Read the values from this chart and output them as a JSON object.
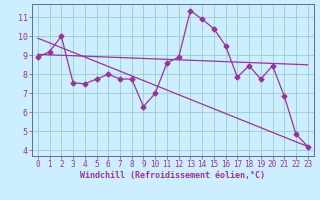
{
  "background_color": "#cceeff",
  "plot_bg_color": "#cceeff",
  "grid_color": "#99cccc",
  "line_color": "#993399",
  "spine_color": "#666699",
  "xlim": [
    -0.5,
    23.5
  ],
  "ylim": [
    3.7,
    11.7
  ],
  "yticks": [
    4,
    5,
    6,
    7,
    8,
    9,
    10,
    11
  ],
  "xticks": [
    0,
    1,
    2,
    3,
    4,
    5,
    6,
    7,
    8,
    9,
    10,
    11,
    12,
    13,
    14,
    15,
    16,
    17,
    18,
    19,
    20,
    21,
    22,
    23
  ],
  "xlabel": "Windchill (Refroidissement éolien,°C)",
  "line1_x": [
    0,
    1,
    2,
    3,
    4,
    5,
    6,
    7,
    8,
    9,
    10,
    11,
    12,
    13,
    14,
    15,
    16,
    17,
    18,
    19,
    20,
    21,
    22,
    23
  ],
  "line1_y": [
    8.9,
    9.2,
    10.0,
    7.55,
    7.5,
    7.75,
    8.0,
    7.75,
    7.75,
    6.3,
    7.0,
    8.6,
    8.9,
    11.35,
    10.9,
    10.4,
    9.5,
    7.85,
    8.45,
    7.75,
    8.45,
    6.85,
    4.85,
    4.2
  ],
  "line2_x": [
    0,
    23
  ],
  "line2_y": [
    9.05,
    8.5
  ],
  "line3_x": [
    0,
    23
  ],
  "line3_y": [
    9.9,
    4.2
  ],
  "markersize": 2.5,
  "linewidth": 0.9,
  "tick_fontsize": 5.5,
  "xlabel_fontsize": 6.0
}
